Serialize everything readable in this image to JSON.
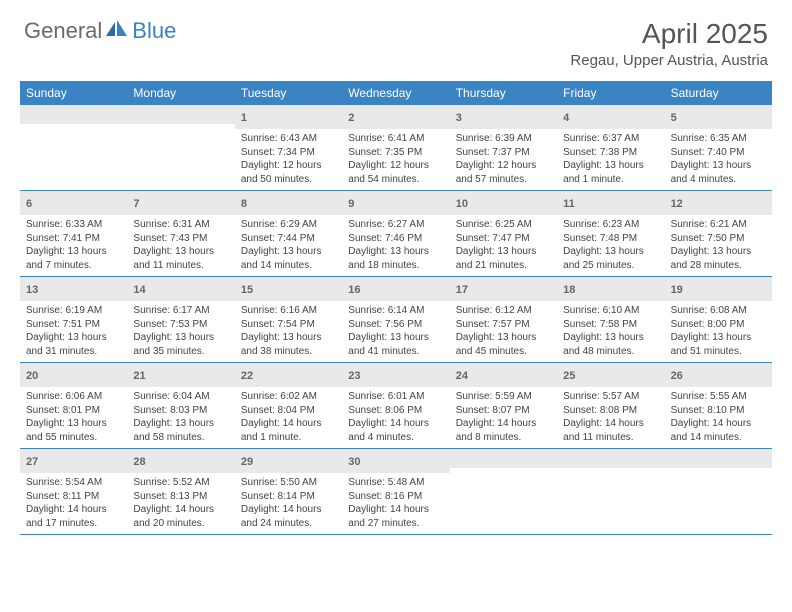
{
  "logo": {
    "text1": "General",
    "text2": "Blue"
  },
  "title": "April 2025",
  "location": "Regau, Upper Austria, Austria",
  "colors": {
    "header_bg": "#3b84c4",
    "daynum_bg": "#e9e9e9",
    "border": "#3b84c4",
    "text_muted": "#666",
    "body_text": "#444"
  },
  "layout": {
    "columns": 7,
    "weeks": 5
  },
  "weekdays": [
    "Sunday",
    "Monday",
    "Tuesday",
    "Wednesday",
    "Thursday",
    "Friday",
    "Saturday"
  ],
  "days": [
    {
      "n": "",
      "sunrise": "",
      "sunset": "",
      "daylight": ""
    },
    {
      "n": "",
      "sunrise": "",
      "sunset": "",
      "daylight": ""
    },
    {
      "n": "1",
      "sunrise": "Sunrise: 6:43 AM",
      "sunset": "Sunset: 7:34 PM",
      "daylight": "Daylight: 12 hours and 50 minutes."
    },
    {
      "n": "2",
      "sunrise": "Sunrise: 6:41 AM",
      "sunset": "Sunset: 7:35 PM",
      "daylight": "Daylight: 12 hours and 54 minutes."
    },
    {
      "n": "3",
      "sunrise": "Sunrise: 6:39 AM",
      "sunset": "Sunset: 7:37 PM",
      "daylight": "Daylight: 12 hours and 57 minutes."
    },
    {
      "n": "4",
      "sunrise": "Sunrise: 6:37 AM",
      "sunset": "Sunset: 7:38 PM",
      "daylight": "Daylight: 13 hours and 1 minute."
    },
    {
      "n": "5",
      "sunrise": "Sunrise: 6:35 AM",
      "sunset": "Sunset: 7:40 PM",
      "daylight": "Daylight: 13 hours and 4 minutes."
    },
    {
      "n": "6",
      "sunrise": "Sunrise: 6:33 AM",
      "sunset": "Sunset: 7:41 PM",
      "daylight": "Daylight: 13 hours and 7 minutes."
    },
    {
      "n": "7",
      "sunrise": "Sunrise: 6:31 AM",
      "sunset": "Sunset: 7:43 PM",
      "daylight": "Daylight: 13 hours and 11 minutes."
    },
    {
      "n": "8",
      "sunrise": "Sunrise: 6:29 AM",
      "sunset": "Sunset: 7:44 PM",
      "daylight": "Daylight: 13 hours and 14 minutes."
    },
    {
      "n": "9",
      "sunrise": "Sunrise: 6:27 AM",
      "sunset": "Sunset: 7:46 PM",
      "daylight": "Daylight: 13 hours and 18 minutes."
    },
    {
      "n": "10",
      "sunrise": "Sunrise: 6:25 AM",
      "sunset": "Sunset: 7:47 PM",
      "daylight": "Daylight: 13 hours and 21 minutes."
    },
    {
      "n": "11",
      "sunrise": "Sunrise: 6:23 AM",
      "sunset": "Sunset: 7:48 PM",
      "daylight": "Daylight: 13 hours and 25 minutes."
    },
    {
      "n": "12",
      "sunrise": "Sunrise: 6:21 AM",
      "sunset": "Sunset: 7:50 PM",
      "daylight": "Daylight: 13 hours and 28 minutes."
    },
    {
      "n": "13",
      "sunrise": "Sunrise: 6:19 AM",
      "sunset": "Sunset: 7:51 PM",
      "daylight": "Daylight: 13 hours and 31 minutes."
    },
    {
      "n": "14",
      "sunrise": "Sunrise: 6:17 AM",
      "sunset": "Sunset: 7:53 PM",
      "daylight": "Daylight: 13 hours and 35 minutes."
    },
    {
      "n": "15",
      "sunrise": "Sunrise: 6:16 AM",
      "sunset": "Sunset: 7:54 PM",
      "daylight": "Daylight: 13 hours and 38 minutes."
    },
    {
      "n": "16",
      "sunrise": "Sunrise: 6:14 AM",
      "sunset": "Sunset: 7:56 PM",
      "daylight": "Daylight: 13 hours and 41 minutes."
    },
    {
      "n": "17",
      "sunrise": "Sunrise: 6:12 AM",
      "sunset": "Sunset: 7:57 PM",
      "daylight": "Daylight: 13 hours and 45 minutes."
    },
    {
      "n": "18",
      "sunrise": "Sunrise: 6:10 AM",
      "sunset": "Sunset: 7:58 PM",
      "daylight": "Daylight: 13 hours and 48 minutes."
    },
    {
      "n": "19",
      "sunrise": "Sunrise: 6:08 AM",
      "sunset": "Sunset: 8:00 PM",
      "daylight": "Daylight: 13 hours and 51 minutes."
    },
    {
      "n": "20",
      "sunrise": "Sunrise: 6:06 AM",
      "sunset": "Sunset: 8:01 PM",
      "daylight": "Daylight: 13 hours and 55 minutes."
    },
    {
      "n": "21",
      "sunrise": "Sunrise: 6:04 AM",
      "sunset": "Sunset: 8:03 PM",
      "daylight": "Daylight: 13 hours and 58 minutes."
    },
    {
      "n": "22",
      "sunrise": "Sunrise: 6:02 AM",
      "sunset": "Sunset: 8:04 PM",
      "daylight": "Daylight: 14 hours and 1 minute."
    },
    {
      "n": "23",
      "sunrise": "Sunrise: 6:01 AM",
      "sunset": "Sunset: 8:06 PM",
      "daylight": "Daylight: 14 hours and 4 minutes."
    },
    {
      "n": "24",
      "sunrise": "Sunrise: 5:59 AM",
      "sunset": "Sunset: 8:07 PM",
      "daylight": "Daylight: 14 hours and 8 minutes."
    },
    {
      "n": "25",
      "sunrise": "Sunrise: 5:57 AM",
      "sunset": "Sunset: 8:08 PM",
      "daylight": "Daylight: 14 hours and 11 minutes."
    },
    {
      "n": "26",
      "sunrise": "Sunrise: 5:55 AM",
      "sunset": "Sunset: 8:10 PM",
      "daylight": "Daylight: 14 hours and 14 minutes."
    },
    {
      "n": "27",
      "sunrise": "Sunrise: 5:54 AM",
      "sunset": "Sunset: 8:11 PM",
      "daylight": "Daylight: 14 hours and 17 minutes."
    },
    {
      "n": "28",
      "sunrise": "Sunrise: 5:52 AM",
      "sunset": "Sunset: 8:13 PM",
      "daylight": "Daylight: 14 hours and 20 minutes."
    },
    {
      "n": "29",
      "sunrise": "Sunrise: 5:50 AM",
      "sunset": "Sunset: 8:14 PM",
      "daylight": "Daylight: 14 hours and 24 minutes."
    },
    {
      "n": "30",
      "sunrise": "Sunrise: 5:48 AM",
      "sunset": "Sunset: 8:16 PM",
      "daylight": "Daylight: 14 hours and 27 minutes."
    },
    {
      "n": "",
      "sunrise": "",
      "sunset": "",
      "daylight": ""
    },
    {
      "n": "",
      "sunrise": "",
      "sunset": "",
      "daylight": ""
    },
    {
      "n": "",
      "sunrise": "",
      "sunset": "",
      "daylight": ""
    }
  ]
}
